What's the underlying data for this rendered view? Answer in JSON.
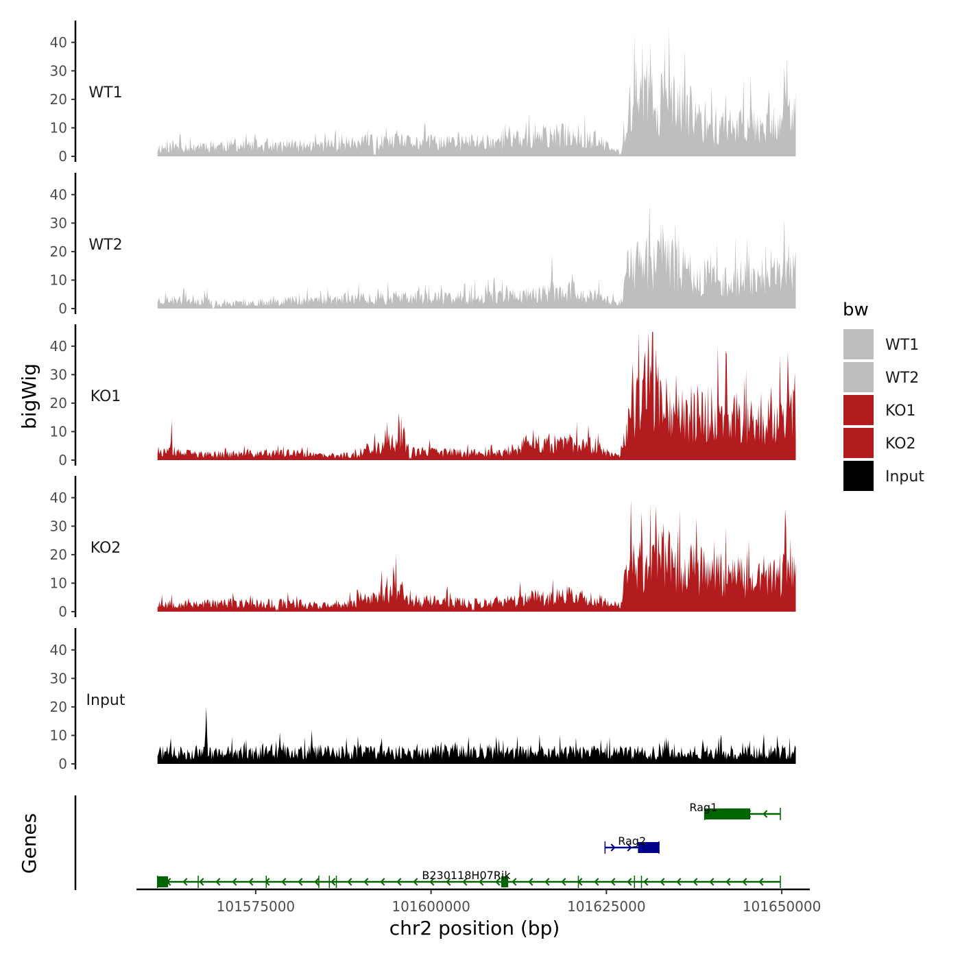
{
  "chart_data": {
    "type": "area",
    "ylabel": "bigWig",
    "xlabel": "chr2 position (bp)",
    "genes_label": "Genes",
    "chrom": "chr2",
    "xlim": [
      101558000,
      101654000
    ],
    "track_range": [
      101561000,
      101652000
    ],
    "ylim": [
      0,
      45
    ],
    "y_ticks": [
      {
        "value": 0,
        "label": "0"
      },
      {
        "value": 10,
        "label": "10"
      },
      {
        "value": 20,
        "label": "20"
      },
      {
        "value": 30,
        "label": "30"
      },
      {
        "value": 40,
        "label": "40"
      }
    ],
    "x_ticks": [
      {
        "value": 101575000,
        "label": "101575000"
      },
      {
        "value": 101600000,
        "label": "101600000"
      },
      {
        "value": 101625000,
        "label": "101625000"
      },
      {
        "value": 101650000,
        "label": "101650000"
      }
    ],
    "tracks": [
      {
        "name": "WT1",
        "color": "#bebebe",
        "seed": 11,
        "spikes": [
          [
            101566000,
            2
          ],
          [
            101592000,
            1
          ],
          [
            101613000,
            3
          ]
        ],
        "profile": [
          [
            101561000,
            3
          ],
          [
            101568000,
            4
          ],
          [
            101580000,
            3.5
          ],
          [
            101592000,
            5
          ],
          [
            101603000,
            5
          ],
          [
            101614000,
            6
          ],
          [
            101620000,
            8
          ],
          [
            101624000,
            5
          ],
          [
            101627000,
            1
          ],
          [
            101628000,
            18
          ],
          [
            101632000,
            20
          ],
          [
            101636000,
            17
          ],
          [
            101640000,
            11
          ],
          [
            101646000,
            12
          ],
          [
            101652000,
            14
          ]
        ],
        "peaks": [
          [
            101631300,
            40
          ],
          [
            101629200,
            34
          ],
          [
            101650700,
            35
          ]
        ]
      },
      {
        "name": "WT2",
        "color": "#bebebe",
        "seed": 23,
        "spikes": [
          [
            101569000,
            0
          ],
          [
            101586000,
            3
          ],
          [
            101605000,
            2
          ]
        ],
        "profile": [
          [
            101561000,
            3
          ],
          [
            101568000,
            3
          ],
          [
            101570000,
            1.5
          ],
          [
            101580000,
            3
          ],
          [
            101593000,
            4
          ],
          [
            101603000,
            4
          ],
          [
            101614000,
            5
          ],
          [
            101620000,
            6
          ],
          [
            101624000,
            4
          ],
          [
            101627000,
            2
          ],
          [
            101628000,
            14
          ],
          [
            101632000,
            18
          ],
          [
            101636000,
            14
          ],
          [
            101640000,
            10
          ],
          [
            101646000,
            11
          ],
          [
            101652000,
            13
          ]
        ],
        "peaks": [
          [
            101631200,
            37
          ],
          [
            101632800,
            30
          ],
          [
            101650300,
            32
          ],
          [
            101617300,
            19
          ]
        ]
      },
      {
        "name": "KO1",
        "color": "#b21c1f",
        "seed": 37,
        "spikes": [
          [
            101563000,
            14
          ],
          [
            101597000,
            1
          ]
        ],
        "profile": [
          [
            101561000,
            3
          ],
          [
            101568000,
            2
          ],
          [
            101580000,
            2.5
          ],
          [
            101585000,
            1.5
          ],
          [
            101590000,
            2
          ],
          [
            101592000,
            5
          ],
          [
            101596000,
            7
          ],
          [
            101598000,
            3
          ],
          [
            101610000,
            2.5
          ],
          [
            101614000,
            6
          ],
          [
            101622000,
            6
          ],
          [
            101625000,
            3
          ],
          [
            101627000,
            2
          ],
          [
            101629000,
            20
          ],
          [
            101632000,
            28
          ],
          [
            101636000,
            17
          ],
          [
            101640000,
            17
          ],
          [
            101646000,
            14
          ],
          [
            101652000,
            16
          ]
        ],
        "peaks": [
          [
            101631000,
            45
          ],
          [
            101628800,
            34
          ],
          [
            101650800,
            38
          ],
          [
            101593500,
            11
          ]
        ]
      },
      {
        "name": "KO2",
        "color": "#b21c1f",
        "seed": 53,
        "spikes": [
          [
            101578000,
            1
          ],
          [
            101606000,
            1
          ]
        ],
        "profile": [
          [
            101561000,
            3
          ],
          [
            101568000,
            3
          ],
          [
            101580000,
            3
          ],
          [
            101587000,
            2
          ],
          [
            101590000,
            4
          ],
          [
            101595000,
            8
          ],
          [
            101598000,
            4
          ],
          [
            101610000,
            3
          ],
          [
            101614000,
            5
          ],
          [
            101620000,
            6
          ],
          [
            101624000,
            4
          ],
          [
            101627000,
            2
          ],
          [
            101628000,
            16
          ],
          [
            101632000,
            20
          ],
          [
            101636000,
            16
          ],
          [
            101640000,
            14
          ],
          [
            101646000,
            12
          ],
          [
            101652000,
            14
          ]
        ],
        "peaks": [
          [
            101632000,
            37
          ],
          [
            101630000,
            35
          ],
          [
            101650500,
            36
          ],
          [
            101594800,
            13
          ]
        ]
      },
      {
        "name": "Input",
        "color": "#000000",
        "seed": 71,
        "spikes": [],
        "profile": [
          [
            101561000,
            4
          ],
          [
            101600000,
            4.5
          ],
          [
            101630000,
            4
          ],
          [
            101652000,
            4.5
          ]
        ],
        "peaks": [
          [
            101568000,
            20
          ],
          [
            101578500,
            11
          ],
          [
            101583000,
            12
          ]
        ]
      }
    ],
    "legend": {
      "title": "bw",
      "items": [
        {
          "label": "WT1",
          "color": "#bebebe"
        },
        {
          "label": "WT2",
          "color": "#bebebe"
        },
        {
          "label": "KO1",
          "color": "#b21c1f"
        },
        {
          "label": "KO2",
          "color": "#b21c1f"
        },
        {
          "label": "Input",
          "color": "#000000"
        }
      ]
    },
    "genes": [
      {
        "name": "Rag1",
        "color": "#006400",
        "strand": "-",
        "row": 0,
        "start": 101639000,
        "end": 101649800,
        "exons": [
          [
            101639000,
            101645500
          ]
        ],
        "breaks": []
      },
      {
        "name": "Rag2",
        "color": "#00008b",
        "strand": "+",
        "row": 1,
        "start": 101624800,
        "end": 101632500,
        "exons": [
          [
            101629500,
            101632500
          ]
        ],
        "breaks": []
      },
      {
        "name": "B230118H07Rik",
        "color": "#006400",
        "strand": "-",
        "row": 2,
        "start": 101561000,
        "end": 101649800,
        "exons": [
          [
            101561000,
            101562500
          ],
          [
            101610000,
            101611000
          ]
        ],
        "breaks": [
          101566800,
          101576500,
          101584000,
          101585500,
          101586500,
          101621000,
          101629000,
          101630000
        ]
      }
    ]
  }
}
